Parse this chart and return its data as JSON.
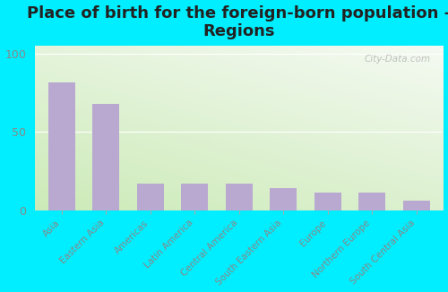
{
  "title": "Place of birth for the foreign-born population -\nRegions",
  "categories": [
    "Asia",
    "Eastern Asia",
    "Americas",
    "Latin America",
    "Central America",
    "South Eastern Asia",
    "Europe",
    "Northern Europe",
    "South Central Asia"
  ],
  "values": [
    82,
    68,
    17,
    17,
    17,
    14,
    11,
    11,
    6
  ],
  "bar_color": "#b9a8d0",
  "background_outer": "#00eeff",
  "yticks": [
    0,
    50,
    100
  ],
  "ylim": [
    0,
    105
  ],
  "title_fontsize": 13,
  "tick_label_fontsize": 7.5,
  "watermark": "City-Data.com",
  "grad_top_left": "#f2f8ee",
  "grad_bottom_right": "#c8e8b8",
  "grid_color": "#e0e8d8",
  "tick_color": "#888888"
}
